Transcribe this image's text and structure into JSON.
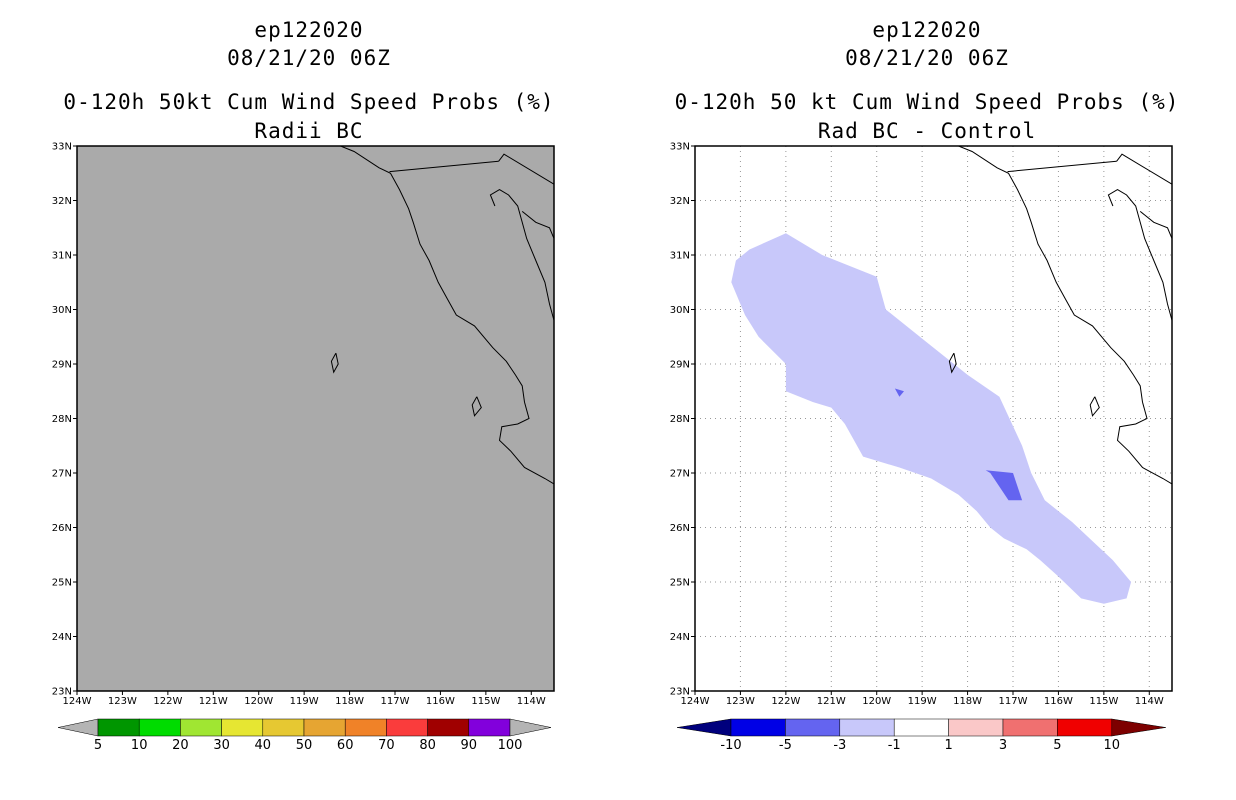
{
  "panels": [
    {
      "title_line1": "ep122020",
      "title_line2": "08/21/20 06Z",
      "title_line3": "0-120h 50kt Cum Wind Speed Probs (%)",
      "title_line4": "Radii BC",
      "background_color": "#aaaaaa",
      "gridlines": false,
      "colorbar": {
        "labels": [
          "5",
          "10",
          "20",
          "30",
          "40",
          "50",
          "60",
          "70",
          "80",
          "90",
          "100"
        ],
        "colors": [
          "#009600",
          "#00dc00",
          "#a0e632",
          "#e6e632",
          "#e6c832",
          "#e6a532",
          "#f08228",
          "#fa3c3c",
          "#a00000",
          "#8200dc"
        ],
        "end_color": "#b4b4b4"
      }
    },
    {
      "title_line1": "ep122020",
      "title_line2": "08/21/20 06Z",
      "title_line3": "0-120h 50 kt Cum Wind Speed Probs (%)",
      "title_line4": "Rad BC - Control",
      "background_color": "#ffffff",
      "gridlines": true,
      "colorbar": {
        "labels": [
          "-10",
          "-5",
          "-3",
          "-1",
          "1",
          "3",
          "5",
          "10"
        ],
        "colors": [
          "#0000e6",
          "#6464f0",
          "#c8c8fa",
          "#ffffff",
          "#fac8c8",
          "#f07070",
          "#f00000"
        ],
        "end_left_color": "#00007d",
        "end_right_color": "#7d0000"
      },
      "contours": [
        {
          "level": "-1 to -3",
          "color": "#c8c8fa",
          "polygon_lonlat": [
            [
              -123.2,
              30.5
            ],
            [
              -123.1,
              30.9
            ],
            [
              -122.8,
              31.1
            ],
            [
              -122.0,
              31.4
            ],
            [
              -121.2,
              31.0
            ],
            [
              -120.0,
              30.6
            ],
            [
              -119.8,
              30.0
            ],
            [
              -118.9,
              29.4
            ],
            [
              -118.0,
              28.8
            ],
            [
              -117.3,
              28.4
            ],
            [
              -116.8,
              27.5
            ],
            [
              -116.6,
              27.0
            ],
            [
              -116.3,
              26.5
            ],
            [
              -115.7,
              26.1
            ],
            [
              -114.8,
              25.4
            ],
            [
              -114.4,
              25.0
            ],
            [
              -114.5,
              24.7
            ],
            [
              -115.0,
              24.6
            ],
            [
              -115.5,
              24.7
            ],
            [
              -116.0,
              25.1
            ],
            [
              -116.4,
              25.4
            ],
            [
              -116.7,
              25.6
            ],
            [
              -117.2,
              25.8
            ],
            [
              -117.5,
              26.0
            ],
            [
              -117.8,
              26.3
            ],
            [
              -118.2,
              26.6
            ],
            [
              -118.8,
              26.9
            ],
            [
              -119.5,
              27.1
            ],
            [
              -119.9,
              27.2
            ],
            [
              -120.3,
              27.3
            ],
            [
              -120.5,
              27.6
            ],
            [
              -120.7,
              27.9
            ],
            [
              -121.0,
              28.2
            ],
            [
              -121.4,
              28.3
            ],
            [
              -122.0,
              28.5
            ],
            [
              -122.0,
              29.0
            ],
            [
              -122.6,
              29.5
            ],
            [
              -122.9,
              29.9
            ],
            [
              -123.2,
              30.5
            ]
          ]
        },
        {
          "level": "-3 to -5",
          "color": "#6464f0",
          "polygon_lonlat": [
            [
              -117.6,
              27.05
            ],
            [
              -117.0,
              27.0
            ],
            [
              -116.8,
              26.5
            ],
            [
              -117.1,
              26.5
            ],
            [
              -117.5,
              27.0
            ]
          ]
        },
        {
          "level": "-3 to -5",
          "color": "#6464f0",
          "polygon_lonlat": [
            [
              -119.6,
              28.55
            ],
            [
              -119.4,
              28.5
            ],
            [
              -119.5,
              28.4
            ]
          ]
        }
      ]
    }
  ],
  "map": {
    "lon_min": -124,
    "lon_max": -113.5,
    "lat_min": 23,
    "lat_max": 33,
    "lon_ticks": [
      -124,
      -123,
      -122,
      -121,
      -120,
      -119,
      -118,
      -117,
      -116,
      -115,
      -114
    ],
    "lat_ticks": [
      23,
      24,
      25,
      26,
      27,
      28,
      29,
      30,
      31,
      32,
      33
    ],
    "lon_tick_labels": [
      "124W",
      "123W",
      "122W",
      "121W",
      "120W",
      "119W",
      "118W",
      "117W",
      "116W",
      "115W",
      "114W"
    ],
    "lat_tick_labels": [
      "23N",
      "24N",
      "25N",
      "26N",
      "27N",
      "28N",
      "29N",
      "30N",
      "31N",
      "32N",
      "33N"
    ],
    "coastline_lonlat": [
      [
        -118.2,
        33.0
      ],
      [
        -117.9,
        32.9
      ],
      [
        -117.35,
        32.6
      ],
      [
        -117.1,
        32.5
      ],
      [
        -116.9,
        32.2
      ],
      [
        -116.7,
        31.85
      ],
      [
        -116.6,
        31.6
      ],
      [
        -116.45,
        31.2
      ],
      [
        -116.25,
        30.9
      ],
      [
        -116.05,
        30.5
      ],
      [
        -115.85,
        30.2
      ],
      [
        -115.65,
        29.9
      ],
      [
        -115.25,
        29.7
      ],
      [
        -114.85,
        29.3
      ],
      [
        -114.55,
        29.05
      ],
      [
        -114.35,
        28.8
      ],
      [
        -114.2,
        28.6
      ],
      [
        -114.15,
        28.3
      ],
      [
        -114.05,
        28.0
      ],
      [
        -114.3,
        27.9
      ],
      [
        -114.65,
        27.85
      ],
      [
        -114.7,
        27.6
      ],
      [
        -114.45,
        27.4
      ],
      [
        -114.15,
        27.1
      ],
      [
        -113.7,
        26.9
      ],
      [
        -113.5,
        26.8
      ]
    ],
    "gulf_coast_lonlat": [
      [
        -113.5,
        29.8
      ],
      [
        -113.6,
        30.1
      ],
      [
        -113.7,
        30.5
      ],
      [
        -113.9,
        30.9
      ],
      [
        -114.1,
        31.3
      ],
      [
        -114.2,
        31.6
      ],
      [
        -114.3,
        31.9
      ],
      [
        -114.5,
        32.1
      ],
      [
        -114.7,
        32.2
      ],
      [
        -114.9,
        32.1
      ],
      [
        -114.8,
        31.9
      ]
    ],
    "gulf_east_lonlat": [
      [
        -114.2,
        31.8
      ],
      [
        -113.9,
        31.6
      ],
      [
        -113.6,
        31.5
      ],
      [
        -113.5,
        31.3
      ]
    ],
    "border_lonlat": [
      [
        -117.12,
        32.53
      ],
      [
        -114.72,
        32.72
      ]
    ],
    "border2_lonlat": [
      [
        -114.72,
        32.72
      ],
      [
        -114.6,
        32.85
      ],
      [
        -113.5,
        32.3
      ]
    ],
    "islands_lonlat": [
      [
        [
          -118.3,
          29.2
        ],
        [
          -118.25,
          29.0
        ],
        [
          -118.35,
          28.85
        ],
        [
          -118.4,
          29.05
        ],
        [
          -118.3,
          29.2
        ]
      ],
      [
        [
          -115.2,
          28.4
        ],
        [
          -115.1,
          28.2
        ],
        [
          -115.25,
          28.05
        ],
        [
          -115.3,
          28.25
        ],
        [
          -115.2,
          28.4
        ]
      ]
    ]
  }
}
